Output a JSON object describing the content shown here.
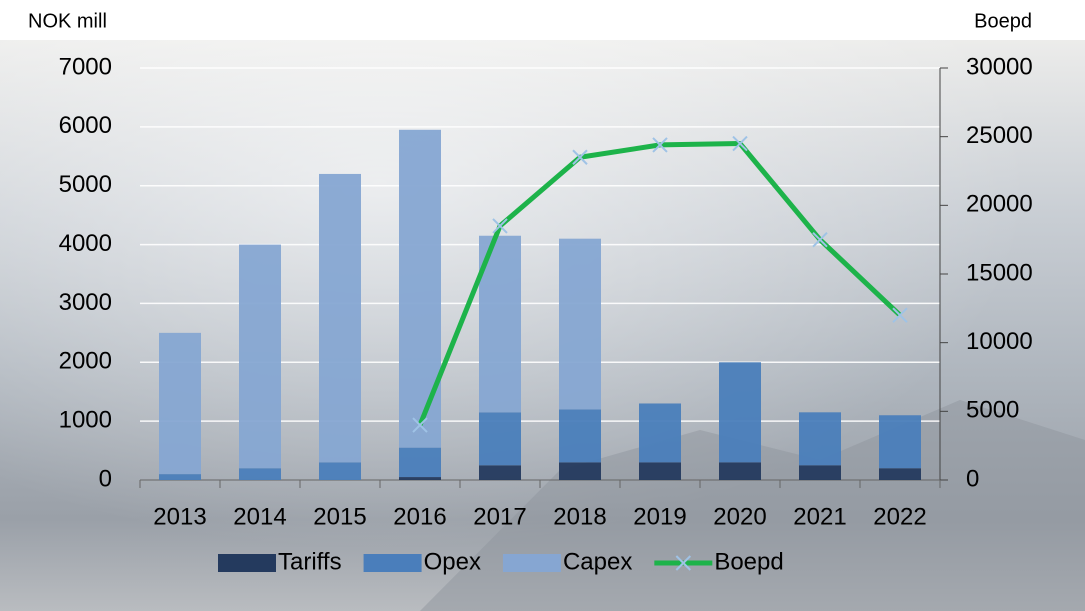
{
  "chart_data": {
    "type": "bar",
    "stacked": true,
    "y_label": "NOK mill",
    "y2_label": "Boepd",
    "categories": [
      "2013",
      "2014",
      "2015",
      "2016",
      "2017",
      "2018",
      "2019",
      "2020",
      "2021",
      "2022"
    ],
    "series": [
      {
        "name": "Tariffs",
        "color": "#243a5e",
        "values": [
          0,
          0,
          0,
          50,
          250,
          300,
          300,
          300,
          250,
          200
        ]
      },
      {
        "name": "Opex",
        "color": "#4a7ebb",
        "values": [
          100,
          200,
          300,
          500,
          900,
          900,
          1000,
          1700,
          900,
          900
        ]
      },
      {
        "name": "Capex",
        "color": "#86a6d2",
        "values": [
          2400,
          3800,
          4900,
          5400,
          3000,
          2900,
          0,
          0,
          0,
          0
        ]
      },
      {
        "name": "Boepd",
        "type": "line",
        "axis": "y2",
        "color": "#1db34a",
        "marker_color": "#9fc3e6",
        "values": [
          null,
          null,
          null,
          4000,
          18500,
          23500,
          24400,
          24500,
          17500,
          12000
        ]
      }
    ],
    "ylim": [
      0,
      7000
    ],
    "yticks": [
      0,
      1000,
      2000,
      3000,
      4000,
      5000,
      6000,
      7000
    ],
    "y2lim": [
      0,
      30000
    ],
    "y2ticks": [
      0,
      5000,
      10000,
      15000,
      20000,
      25000,
      30000
    ],
    "grid": true,
    "legend": "bottom"
  }
}
